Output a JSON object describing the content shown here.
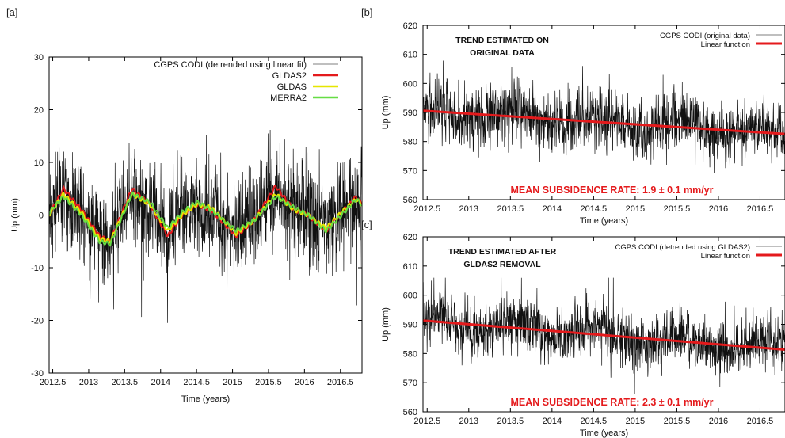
{
  "colors": {
    "gps": "#111111",
    "gldas2": "#e41a1c",
    "gldas": "#e6e600",
    "merra2": "#66dd44",
    "linear": "#e41a1c",
    "rate_text": "#e41a1c"
  },
  "chart_data": [
    {
      "panel": "[a]",
      "type": "line",
      "xlabel": "Time (years)",
      "ylabel": "Up (mm)",
      "xlim": [
        2012.45,
        2016.8
      ],
      "ylim": [
        -30,
        30
      ],
      "xticks": [
        "2012.5",
        "2013",
        "2013.5",
        "2014",
        "2014.5",
        "2015",
        "2015.5",
        "2016",
        "2016.5"
      ],
      "yticks": [
        "30",
        "20",
        "10",
        "0",
        "-10",
        "-20",
        "-30"
      ],
      "legend_position": "top-right",
      "series": [
        {
          "name": "CGPS CODI (detrended using linear fit)",
          "color": "#111111",
          "kind": "noisy_daily",
          "approx_std": 4.5,
          "range": [
            -20.5,
            20
          ]
        },
        {
          "name": "GLDAS2",
          "color": "#e41a1c",
          "x": [
            2012.45,
            2012.65,
            2012.9,
            2013.15,
            2013.3,
            2013.6,
            2013.85,
            2014.1,
            2014.3,
            2014.5,
            2014.7,
            2015.05,
            2015.3,
            2015.6,
            2015.85,
            2016.05,
            2016.3,
            2016.55,
            2016.72,
            2016.8
          ],
          "y": [
            0,
            5,
            1,
            -4,
            -5,
            5,
            2,
            -4,
            0,
            2,
            1,
            -4,
            -1,
            5.5,
            1,
            0,
            -3,
            1,
            3.5,
            2
          ]
        },
        {
          "name": "GLDAS",
          "color": "#e6e600",
          "x": [
            2012.45,
            2012.65,
            2012.9,
            2013.15,
            2013.3,
            2013.6,
            2013.85,
            2014.1,
            2014.3,
            2014.5,
            2014.7,
            2015.05,
            2015.3,
            2015.6,
            2015.85,
            2016.05,
            2016.3,
            2016.55,
            2016.72,
            2016.8
          ],
          "y": [
            0,
            4,
            0.5,
            -4.5,
            -5,
            4,
            2,
            -3,
            0,
            2,
            1.5,
            -3.5,
            -1,
            4,
            1,
            0,
            -2.5,
            1,
            3,
            2
          ]
        },
        {
          "name": "MERRA2",
          "color": "#66dd44",
          "x": [
            2012.45,
            2012.65,
            2012.9,
            2013.15,
            2013.3,
            2013.6,
            2013.85,
            2014.1,
            2014.3,
            2014.5,
            2014.7,
            2015.05,
            2015.3,
            2015.6,
            2015.85,
            2016.05,
            2016.3,
            2016.55,
            2016.72,
            2016.8
          ],
          "y": [
            0.5,
            3.5,
            0,
            -5,
            -5.5,
            4,
            2.5,
            -2.5,
            0.5,
            2.5,
            1,
            -3,
            -1,
            3.5,
            1.5,
            0,
            -3,
            0.5,
            3,
            2
          ]
        }
      ]
    },
    {
      "panel": "[b]",
      "type": "line",
      "xlabel": "Time (years)",
      "ylabel": "Up (mm)",
      "xlim": [
        2012.45,
        2016.8
      ],
      "ylim": [
        560,
        620
      ],
      "xticks": [
        "2012.5",
        "2013",
        "2013.5",
        "2014",
        "2014.5",
        "2015",
        "2015.5",
        "2016",
        "2016.5"
      ],
      "yticks": [
        "620",
        "610",
        "600",
        "590",
        "580",
        "570",
        "560"
      ],
      "legend_position": "top-right",
      "annotation": [
        "TREND ESTIMATED ON",
        "ORIGINAL DATA"
      ],
      "rate_text": "MEAN SUBSIDENCE RATE: 1.9 ± 0.1 mm/yr",
      "series": [
        {
          "name": "CGPS CODI (original data)",
          "color": "#111111",
          "kind": "noisy_daily",
          "approx_std": 5,
          "range": [
            568,
            608
          ]
        },
        {
          "name": "Linear function",
          "color": "#e41a1c",
          "x": [
            2012.45,
            2016.8
          ],
          "y": [
            590.6,
            582.6
          ]
        }
      ]
    },
    {
      "panel": "[c]",
      "type": "line",
      "xlabel": "Time (years)",
      "ylabel": "Up (mm)",
      "xlim": [
        2012.45,
        2016.8
      ],
      "ylim": [
        560,
        620
      ],
      "xticks": [
        "2012.5",
        "2013",
        "2013.5",
        "2014",
        "2014.5",
        "2015",
        "2015.5",
        "2016",
        "2016.5"
      ],
      "yticks": [
        "620",
        "610",
        "600",
        "590",
        "580",
        "570",
        "560"
      ],
      "legend_position": "top-right",
      "annotation": [
        "TREND ESTIMATED AFTER",
        "GLDAS2 REMOVAL"
      ],
      "rate_text": "MEAN SUBSIDENCE RATE: 2.3 ± 0.1 mm/yr",
      "series": [
        {
          "name": "CGPS CODI (detrended using GLDAS2)",
          "color": "#111111",
          "kind": "noisy_daily",
          "approx_std": 4.5,
          "range": [
            566,
            606
          ]
        },
        {
          "name": "Linear function",
          "color": "#e41a1c",
          "x": [
            2012.45,
            2016.8
          ],
          "y": [
            591.3,
            581.3
          ]
        }
      ]
    }
  ]
}
